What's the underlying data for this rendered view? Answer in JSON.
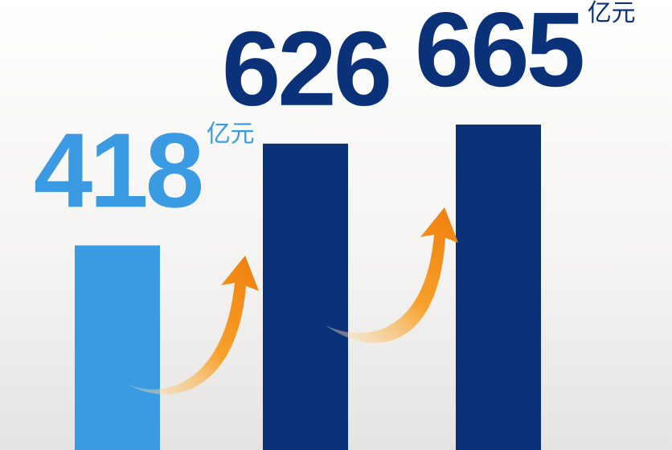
{
  "chart_data": {
    "type": "bar",
    "values": [
      418,
      626,
      665
    ],
    "unit_labels": [
      "亿元",
      null,
      "亿元"
    ],
    "colors": [
      "#3a9be2",
      "#0b3279",
      "#0b3279"
    ]
  }
}
